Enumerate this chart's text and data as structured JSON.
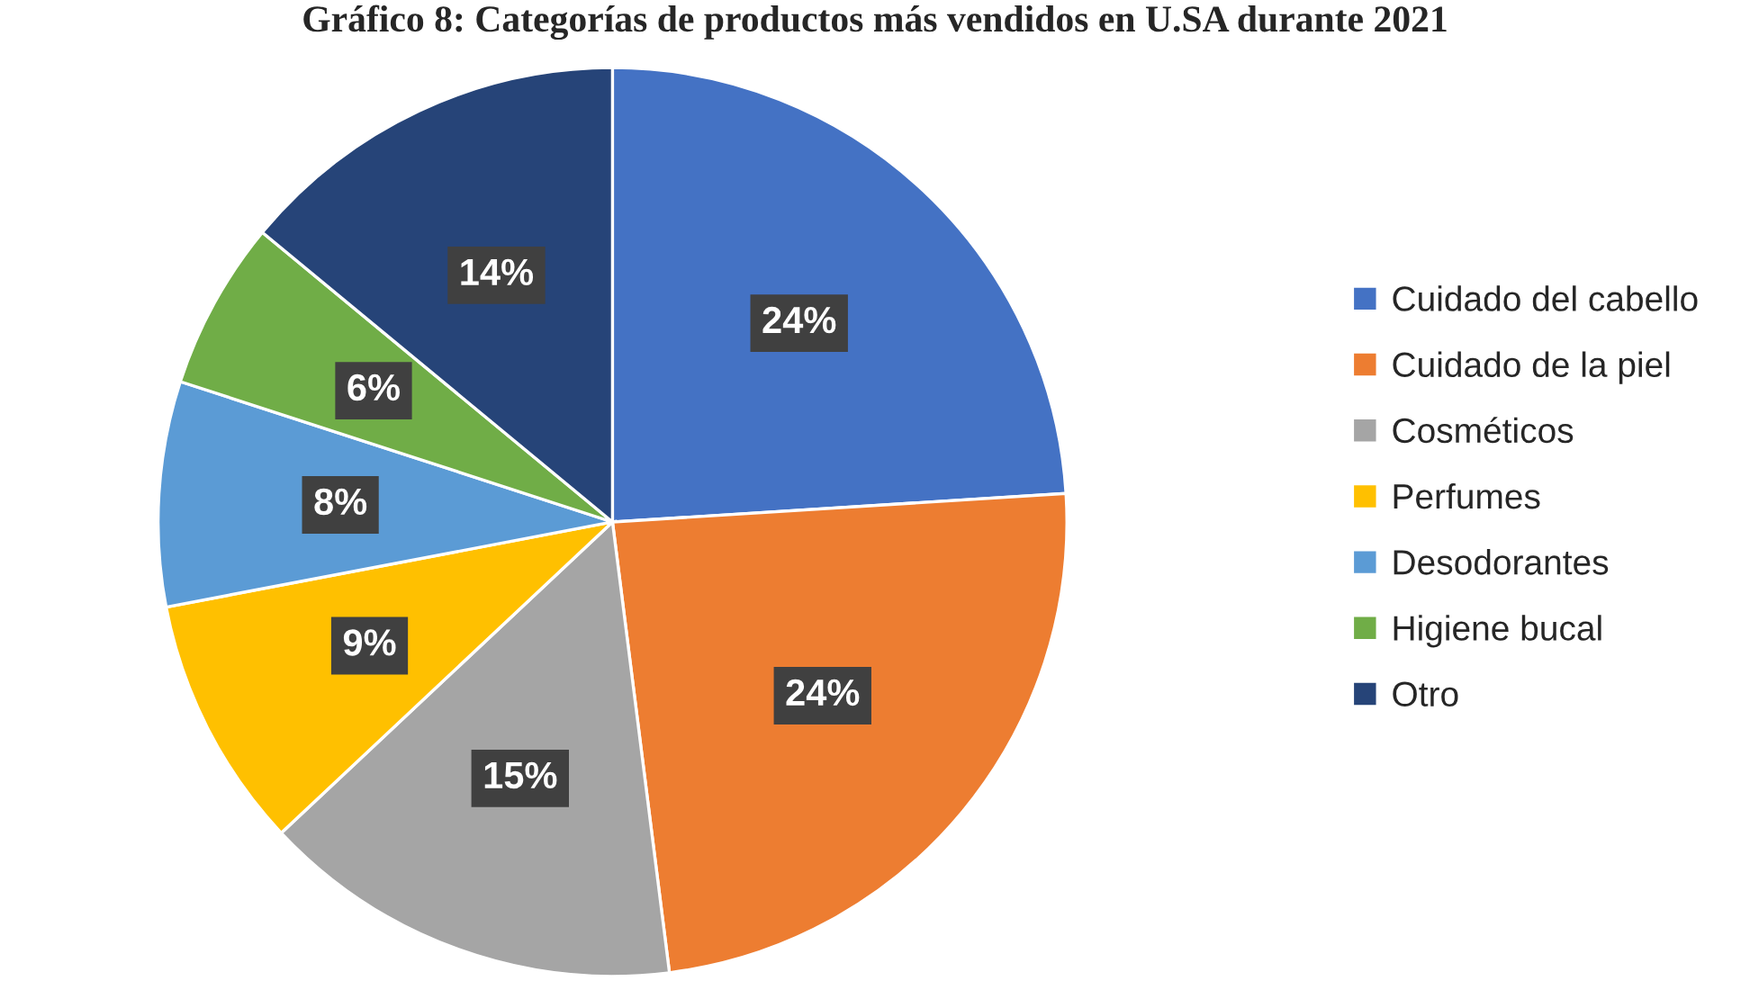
{
  "chart_data": {
    "type": "pie",
    "title": "Gráfico 8: Categorías de productos más vendidos en U.SA durante 2021",
    "categories": [
      "Cuidado del cabello",
      "Cuidado de la piel",
      "Cosméticos",
      "Perfumes",
      "Desodorantes",
      "Higiene bucal",
      "Otro"
    ],
    "values": [
      24,
      24,
      15,
      9,
      8,
      6,
      14
    ],
    "colors": [
      "#4472c4",
      "#ed7d31",
      "#a5a5a5",
      "#ffc000",
      "#5b9bd5",
      "#70ad47",
      "#264478"
    ],
    "value_labels": [
      "24%",
      "24%",
      "15%",
      "9%",
      "8%",
      "6%",
      "14%"
    ],
    "legend": "right"
  }
}
